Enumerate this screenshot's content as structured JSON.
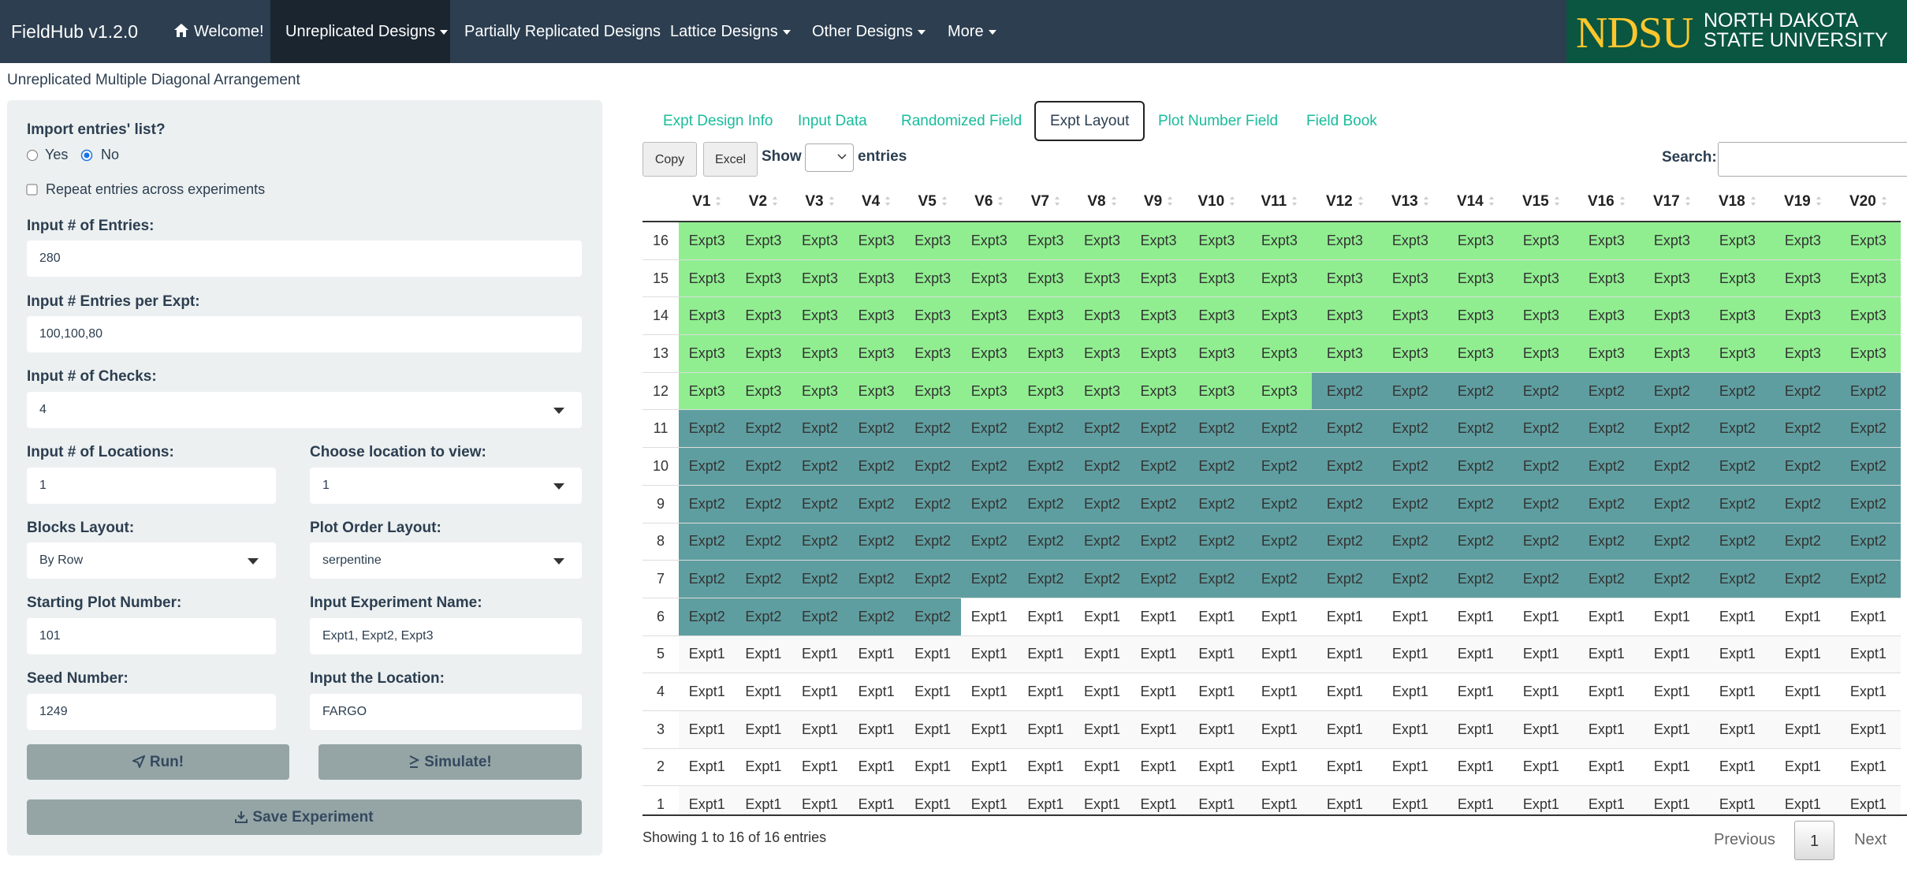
{
  "navbar": {
    "brand": "FieldHub v1.2.0",
    "items": [
      "Welcome!",
      "Unreplicated Designs",
      "Partially Replicated Designs",
      "Lattice Designs",
      "Other Designs",
      "More"
    ],
    "logo": {
      "short": "NDSU",
      "line1": "NORTH DAKOTA",
      "line2": "STATE UNIVERSITY"
    }
  },
  "page_title": "Unreplicated Multiple Diagonal Arrangement",
  "sidebar": {
    "import_label": "Import entries' list?",
    "import_options": [
      "Yes",
      "No"
    ],
    "import_selected": 1,
    "repeat_label": "Repeat entries across experiments",
    "entries": {
      "label": "Input # of Entries:",
      "value": "280"
    },
    "entries_per_expt": {
      "label": "Input # Entries per Expt:",
      "value": "100,100,80"
    },
    "checks": {
      "label": "Input # of Checks:",
      "value": "4"
    },
    "locations": {
      "label": "Input # of Locations:",
      "value": "1"
    },
    "location_view": {
      "label": "Choose location to view:",
      "value": "1"
    },
    "blocks_layout": {
      "label": "Blocks Layout:",
      "value": "By Row"
    },
    "plot_order": {
      "label": "Plot Order Layout:",
      "value": "serpentine"
    },
    "starting_plot": {
      "label": "Starting Plot Number:",
      "value": "101"
    },
    "expt_name": {
      "label": "Input Experiment Name:",
      "value": "Expt1, Expt2, Expt3"
    },
    "seed": {
      "label": "Seed Number:",
      "value": "1249"
    },
    "location": {
      "label": "Input the Location:",
      "value": "FARGO"
    },
    "run": "Run!",
    "simulate": "Simulate!",
    "save": "Save Experiment"
  },
  "tabs": [
    "Expt Design Info",
    "Input Data",
    "Randomized Field",
    "Expt Layout",
    "Plot Number Field",
    "Field Book"
  ],
  "active_tab": 3,
  "table_controls": {
    "copy": "Copy",
    "excel": "Excel",
    "show": "Show",
    "entries": "entries",
    "search": "Search:"
  },
  "table": {
    "columns": [
      "",
      "V1",
      "V2",
      "V3",
      "V4",
      "V5",
      "V6",
      "V7",
      "V8",
      "V9",
      "V10",
      "V11",
      "V12",
      "V13",
      "V14",
      "V15",
      "V16",
      "V17",
      "V18",
      "V19",
      "V20"
    ],
    "rows": [
      [
        16,
        "Expt3",
        "Expt3",
        "Expt3",
        "Expt3",
        "Expt3",
        "Expt3",
        "Expt3",
        "Expt3",
        "Expt3",
        "Expt3",
        "Expt3",
        "Expt3",
        "Expt3",
        "Expt3",
        "Expt3",
        "Expt3",
        "Expt3",
        "Expt3",
        "Expt3",
        "Expt3"
      ],
      [
        15,
        "Expt3",
        "Expt3",
        "Expt3",
        "Expt3",
        "Expt3",
        "Expt3",
        "Expt3",
        "Expt3",
        "Expt3",
        "Expt3",
        "Expt3",
        "Expt3",
        "Expt3",
        "Expt3",
        "Expt3",
        "Expt3",
        "Expt3",
        "Expt3",
        "Expt3",
        "Expt3"
      ],
      [
        14,
        "Expt3",
        "Expt3",
        "Expt3",
        "Expt3",
        "Expt3",
        "Expt3",
        "Expt3",
        "Expt3",
        "Expt3",
        "Expt3",
        "Expt3",
        "Expt3",
        "Expt3",
        "Expt3",
        "Expt3",
        "Expt3",
        "Expt3",
        "Expt3",
        "Expt3",
        "Expt3"
      ],
      [
        13,
        "Expt3",
        "Expt3",
        "Expt3",
        "Expt3",
        "Expt3",
        "Expt3",
        "Expt3",
        "Expt3",
        "Expt3",
        "Expt3",
        "Expt3",
        "Expt3",
        "Expt3",
        "Expt3",
        "Expt3",
        "Expt3",
        "Expt3",
        "Expt3",
        "Expt3",
        "Expt3"
      ],
      [
        12,
        "Expt3",
        "Expt3",
        "Expt3",
        "Expt3",
        "Expt3",
        "Expt3",
        "Expt3",
        "Expt3",
        "Expt3",
        "Expt3",
        "Expt3",
        "Expt2",
        "Expt2",
        "Expt2",
        "Expt2",
        "Expt2",
        "Expt2",
        "Expt2",
        "Expt2",
        "Expt2"
      ],
      [
        11,
        "Expt2",
        "Expt2",
        "Expt2",
        "Expt2",
        "Expt2",
        "Expt2",
        "Expt2",
        "Expt2",
        "Expt2",
        "Expt2",
        "Expt2",
        "Expt2",
        "Expt2",
        "Expt2",
        "Expt2",
        "Expt2",
        "Expt2",
        "Expt2",
        "Expt2",
        "Expt2"
      ],
      [
        10,
        "Expt2",
        "Expt2",
        "Expt2",
        "Expt2",
        "Expt2",
        "Expt2",
        "Expt2",
        "Expt2",
        "Expt2",
        "Expt2",
        "Expt2",
        "Expt2",
        "Expt2",
        "Expt2",
        "Expt2",
        "Expt2",
        "Expt2",
        "Expt2",
        "Expt2",
        "Expt2"
      ],
      [
        9,
        "Expt2",
        "Expt2",
        "Expt2",
        "Expt2",
        "Expt2",
        "Expt2",
        "Expt2",
        "Expt2",
        "Expt2",
        "Expt2",
        "Expt2",
        "Expt2",
        "Expt2",
        "Expt2",
        "Expt2",
        "Expt2",
        "Expt2",
        "Expt2",
        "Expt2",
        "Expt2"
      ],
      [
        8,
        "Expt2",
        "Expt2",
        "Expt2",
        "Expt2",
        "Expt2",
        "Expt2",
        "Expt2",
        "Expt2",
        "Expt2",
        "Expt2",
        "Expt2",
        "Expt2",
        "Expt2",
        "Expt2",
        "Expt2",
        "Expt2",
        "Expt2",
        "Expt2",
        "Expt2",
        "Expt2"
      ],
      [
        7,
        "Expt2",
        "Expt2",
        "Expt2",
        "Expt2",
        "Expt2",
        "Expt2",
        "Expt2",
        "Expt2",
        "Expt2",
        "Expt2",
        "Expt2",
        "Expt2",
        "Expt2",
        "Expt2",
        "Expt2",
        "Expt2",
        "Expt2",
        "Expt2",
        "Expt2",
        "Expt2"
      ],
      [
        6,
        "Expt2",
        "Expt2",
        "Expt2",
        "Expt2",
        "Expt2",
        "Expt1",
        "Expt1",
        "Expt1",
        "Expt1",
        "Expt1",
        "Expt1",
        "Expt1",
        "Expt1",
        "Expt1",
        "Expt1",
        "Expt1",
        "Expt1",
        "Expt1",
        "Expt1",
        "Expt1"
      ],
      [
        5,
        "Expt1",
        "Expt1",
        "Expt1",
        "Expt1",
        "Expt1",
        "Expt1",
        "Expt1",
        "Expt1",
        "Expt1",
        "Expt1",
        "Expt1",
        "Expt1",
        "Expt1",
        "Expt1",
        "Expt1",
        "Expt1",
        "Expt1",
        "Expt1",
        "Expt1",
        "Expt1"
      ],
      [
        4,
        "Expt1",
        "Expt1",
        "Expt1",
        "Expt1",
        "Expt1",
        "Expt1",
        "Expt1",
        "Expt1",
        "Expt1",
        "Expt1",
        "Expt1",
        "Expt1",
        "Expt1",
        "Expt1",
        "Expt1",
        "Expt1",
        "Expt1",
        "Expt1",
        "Expt1",
        "Expt1"
      ],
      [
        3,
        "Expt1",
        "Expt1",
        "Expt1",
        "Expt1",
        "Expt1",
        "Expt1",
        "Expt1",
        "Expt1",
        "Expt1",
        "Expt1",
        "Expt1",
        "Expt1",
        "Expt1",
        "Expt1",
        "Expt1",
        "Expt1",
        "Expt1",
        "Expt1",
        "Expt1",
        "Expt1"
      ],
      [
        2,
        "Expt1",
        "Expt1",
        "Expt1",
        "Expt1",
        "Expt1",
        "Expt1",
        "Expt1",
        "Expt1",
        "Expt1",
        "Expt1",
        "Expt1",
        "Expt1",
        "Expt1",
        "Expt1",
        "Expt1",
        "Expt1",
        "Expt1",
        "Expt1",
        "Expt1",
        "Expt1"
      ],
      [
        1,
        "Expt1",
        "Expt1",
        "Expt1",
        "Expt1",
        "Expt1",
        "Expt1",
        "Expt1",
        "Expt1",
        "Expt1",
        "Expt1",
        "Expt1",
        "Expt1",
        "Expt1",
        "Expt1",
        "Expt1",
        "Expt1",
        "Expt1",
        "Expt1",
        "Expt1",
        "Expt1"
      ]
    ],
    "cell_colors": {
      "Expt3": "#90ee90",
      "Expt2": "#5f9ea0",
      "Expt1": "#ffffff"
    }
  },
  "footer": {
    "info": "Showing 1 to 16 of 16 entries",
    "previous": "Previous",
    "page": "1",
    "next": "Next"
  }
}
